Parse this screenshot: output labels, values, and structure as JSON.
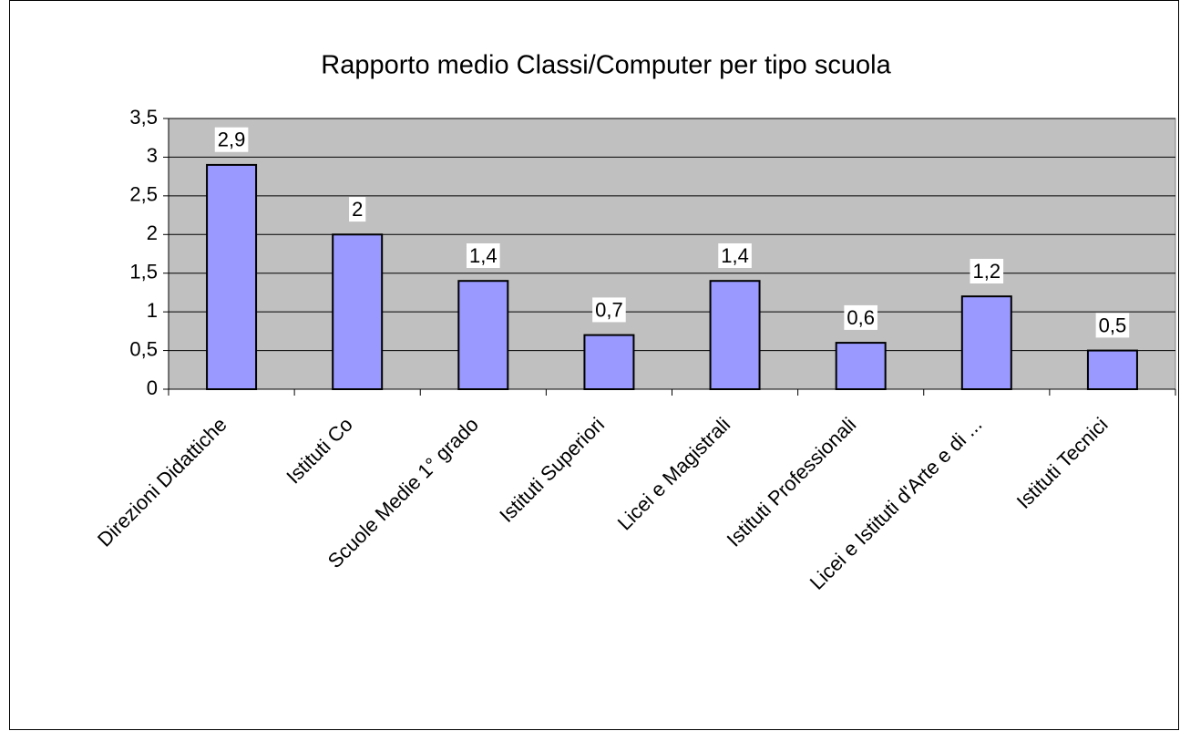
{
  "chart_data": {
    "type": "bar",
    "title": "Rapporto medio Classi/Computer per tipo scuola",
    "categories": [
      "Direzioni Didattiche",
      "Istituti Co",
      "Scuole Medie 1° grado",
      "Istituti Superiori",
      "Licei e Magistrali",
      "Istituti Professionali",
      "Licei e Istituti d'Arte e di ...",
      "Istituti Tecnici"
    ],
    "values": [
      2.9,
      2,
      1.4,
      0.7,
      1.4,
      0.6,
      1.2,
      0.5
    ],
    "value_labels": [
      "2,9",
      "2",
      "1,4",
      "0,7",
      "1,4",
      "0,6",
      "1,2",
      "0,5"
    ],
    "color": "#9999ff",
    "ylim": [
      0,
      3.5
    ],
    "yticks": [
      0,
      {
        "value": 0.5,
        "label": "0,5"
      },
      1,
      {
        "value": 1.5,
        "label": "1,5"
      },
      2,
      {
        "value": 2.5,
        "label": "2,5"
      },
      3,
      {
        "value": 3.5,
        "label": "3,5"
      }
    ],
    "grid": true
  }
}
